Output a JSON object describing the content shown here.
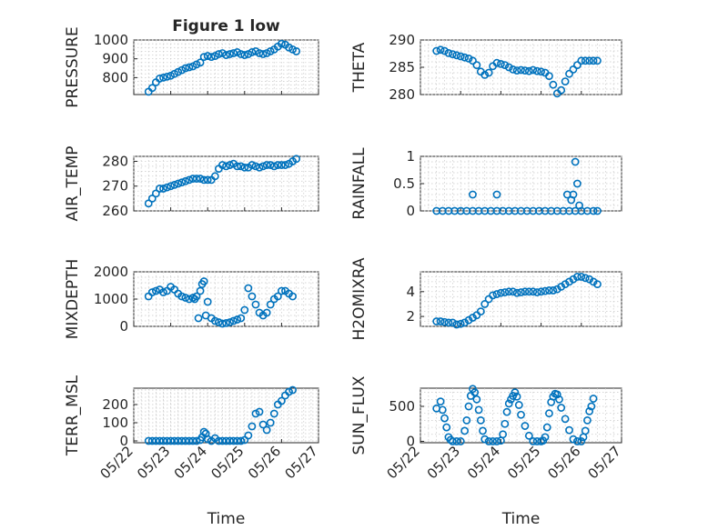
{
  "figure": {
    "title": "Figure 1 low",
    "marker_color": "#0072BD"
  },
  "chart_data": [
    {
      "type": "scatter",
      "title": "Figure 1 low",
      "ylabel": "PRESSURE",
      "xlabel": "",
      "xlim": [
        0,
        5
      ],
      "ylim": [
        710,
        1000
      ],
      "yticks": [
        800,
        900,
        1000
      ],
      "x": [
        0.4,
        0.5,
        0.6,
        0.7,
        0.8,
        0.9,
        1.0,
        1.1,
        1.2,
        1.3,
        1.4,
        1.5,
        1.6,
        1.7,
        1.8,
        1.9,
        2.0,
        2.1,
        2.2,
        2.3,
        2.4,
        2.5,
        2.6,
        2.7,
        2.8,
        2.9,
        3.0,
        3.1,
        3.2,
        3.3,
        3.4,
        3.5,
        3.6,
        3.7,
        3.8,
        3.9,
        4.0,
        4.1,
        4.2,
        4.3,
        4.4
      ],
      "y": [
        725,
        745,
        775,
        795,
        800,
        805,
        810,
        820,
        830,
        840,
        850,
        855,
        860,
        870,
        880,
        910,
        915,
        910,
        915,
        925,
        930,
        920,
        925,
        930,
        935,
        925,
        920,
        925,
        935,
        940,
        930,
        925,
        930,
        940,
        950,
        965,
        980,
        975,
        960,
        950,
        940
      ]
    },
    {
      "type": "scatter",
      "ylabel": "THETA",
      "xlabel": "",
      "xlim": [
        0,
        5
      ],
      "ylim": [
        280,
        290
      ],
      "yticks": [
        280,
        285,
        290
      ],
      "x": [
        0.4,
        0.5,
        0.6,
        0.7,
        0.8,
        0.9,
        1.0,
        1.1,
        1.2,
        1.3,
        1.4,
        1.5,
        1.6,
        1.7,
        1.8,
        1.9,
        2.0,
        2.1,
        2.2,
        2.3,
        2.4,
        2.5,
        2.6,
        2.7,
        2.8,
        2.9,
        3.0,
        3.1,
        3.2,
        3.3,
        3.4,
        3.5,
        3.6,
        3.7,
        3.8,
        3.9,
        4.0,
        4.1,
        4.2,
        4.3,
        4.4
      ],
      "y": [
        288,
        288.2,
        288,
        287.6,
        287.4,
        287.2,
        287,
        286.8,
        286.6,
        286.2,
        285.4,
        284.2,
        283.6,
        284,
        285.2,
        285.8,
        285.6,
        285.4,
        285,
        284.6,
        284.4,
        284.5,
        284.4,
        284.3,
        284.5,
        284.3,
        284.2,
        284,
        283.4,
        281.8,
        280.2,
        280.8,
        282.4,
        283.8,
        284.6,
        285.4,
        286.2,
        286.2,
        286.2,
        286.2,
        286.2
      ]
    },
    {
      "type": "scatter",
      "ylabel": "AIR_TEMP",
      "xlabel": "",
      "xlim": [
        0,
        5
      ],
      "ylim": [
        260,
        282
      ],
      "yticks": [
        260,
        270,
        280
      ],
      "x": [
        0.4,
        0.5,
        0.6,
        0.7,
        0.8,
        0.9,
        1.0,
        1.1,
        1.2,
        1.3,
        1.4,
        1.5,
        1.6,
        1.7,
        1.8,
        1.9,
        2.0,
        2.1,
        2.2,
        2.3,
        2.4,
        2.5,
        2.6,
        2.7,
        2.8,
        2.9,
        3.0,
        3.1,
        3.2,
        3.3,
        3.4,
        3.5,
        3.6,
        3.7,
        3.8,
        3.9,
        4.0,
        4.1,
        4.2,
        4.3,
        4.4
      ],
      "y": [
        263,
        265,
        267,
        269,
        269,
        269.5,
        270,
        270.5,
        271,
        271.5,
        272,
        272.5,
        273,
        273,
        273,
        272.5,
        272.5,
        272.5,
        274,
        277,
        278.5,
        278,
        278.5,
        279,
        278,
        278,
        277.5,
        277.5,
        278.5,
        278,
        277.5,
        278,
        278.5,
        278.5,
        278,
        278.5,
        278.5,
        278.5,
        279,
        280,
        281
      ]
    },
    {
      "type": "scatter",
      "ylabel": "RAINFALL",
      "xlabel": "",
      "xlim": [
        0,
        5
      ],
      "ylim": [
        0,
        1
      ],
      "yticks": [
        0,
        0.5,
        1
      ],
      "x": [
        0.4,
        0.55,
        0.7,
        0.85,
        1.0,
        1.15,
        1.3,
        1.45,
        1.6,
        1.75,
        1.9,
        2.05,
        2.2,
        2.35,
        2.5,
        2.65,
        2.8,
        2.95,
        3.1,
        3.25,
        3.4,
        3.55,
        3.7,
        3.85,
        4.0,
        4.15,
        4.3,
        4.4,
        1.3,
        1.9,
        3.65,
        3.75,
        3.8,
        3.85,
        3.9,
        3.95
      ],
      "y": [
        0,
        0,
        0,
        0,
        0,
        0,
        0,
        0,
        0,
        0,
        0,
        0,
        0,
        0,
        0,
        0,
        0,
        0,
        0,
        0,
        0,
        0,
        0,
        0,
        0,
        0,
        0,
        0,
        0.3,
        0.3,
        0.3,
        0.2,
        0.3,
        0.9,
        0.5,
        0.1
      ]
    },
    {
      "type": "scatter",
      "ylabel": "MIXDEPTH",
      "xlabel": "",
      "xlim": [
        0,
        5
      ],
      "ylim": [
        0,
        2000
      ],
      "yticks": [
        0,
        1000,
        2000
      ],
      "x": [
        0.4,
        0.5,
        0.6,
        0.7,
        0.8,
        0.9,
        1.0,
        1.1,
        1.2,
        1.3,
        1.4,
        1.5,
        1.6,
        1.65,
        1.7,
        1.75,
        1.8,
        1.85,
        1.9,
        1.95,
        2.0,
        2.1,
        2.2,
        2.3,
        2.4,
        2.5,
        2.6,
        2.7,
        2.8,
        2.9,
        3.0,
        3.1,
        3.2,
        3.3,
        3.4,
        3.5,
        3.6,
        3.7,
        3.8,
        3.9,
        4.0,
        4.1,
        4.2,
        4.3
      ],
      "y": [
        1100,
        1250,
        1300,
        1350,
        1250,
        1300,
        1450,
        1350,
        1200,
        1100,
        1050,
        1000,
        1050,
        1000,
        1100,
        300,
        1300,
        1550,
        1650,
        400,
        900,
        300,
        200,
        150,
        100,
        120,
        150,
        200,
        250,
        300,
        600,
        1400,
        1100,
        800,
        500,
        400,
        500,
        800,
        1000,
        1100,
        1300,
        1300,
        1200,
        1100
      ]
    },
    {
      "type": "scatter",
      "ylabel": "H2OMIXRA",
      "xlabel": "",
      "xlim": [
        0,
        5
      ],
      "ylim": [
        1.2,
        5.6
      ],
      "yticks": [
        2,
        4
      ],
      "x": [
        0.4,
        0.5,
        0.6,
        0.7,
        0.8,
        0.9,
        1.0,
        1.1,
        1.2,
        1.3,
        1.4,
        1.5,
        1.6,
        1.7,
        1.8,
        1.9,
        2.0,
        2.1,
        2.2,
        2.3,
        2.4,
        2.5,
        2.6,
        2.7,
        2.8,
        2.9,
        3.0,
        3.1,
        3.2,
        3.3,
        3.4,
        3.5,
        3.6,
        3.7,
        3.8,
        3.9,
        4.0,
        4.1,
        4.2,
        4.3,
        4.4
      ],
      "y": [
        1.6,
        1.6,
        1.55,
        1.5,
        1.5,
        1.35,
        1.4,
        1.5,
        1.7,
        1.9,
        2.1,
        2.4,
        3.0,
        3.4,
        3.7,
        3.8,
        3.9,
        3.95,
        4.0,
        4.0,
        3.9,
        3.95,
        4.0,
        4.0,
        4.0,
        3.95,
        4.0,
        4.05,
        4.1,
        4.1,
        4.2,
        4.4,
        4.6,
        4.8,
        5.0,
        5.2,
        5.2,
        5.1,
        5.0,
        4.8,
        4.6
      ]
    },
    {
      "type": "scatter",
      "ylabel": "TERR_MSL",
      "xlabel": "Time",
      "xlim": [
        0,
        5
      ],
      "ylim": [
        -10,
        290
      ],
      "yticks": [
        0,
        100,
        200
      ],
      "xticklabels": [
        "05/22",
        "05/23",
        "05/24",
        "05/25",
        "05/26",
        "05/27"
      ],
      "x": [
        0.4,
        0.5,
        0.6,
        0.7,
        0.8,
        0.9,
        1.0,
        1.1,
        1.2,
        1.3,
        1.4,
        1.5,
        1.6,
        1.7,
        1.8,
        1.85,
        1.9,
        1.95,
        2.0,
        2.1,
        2.2,
        2.3,
        2.4,
        2.5,
        2.6,
        2.7,
        2.8,
        2.9,
        3.0,
        3.1,
        3.2,
        3.3,
        3.4,
        3.5,
        3.6,
        3.7,
        3.8,
        3.9,
        4.0,
        4.1,
        4.2,
        4.3
      ],
      "y": [
        0,
        0,
        0,
        0,
        0,
        0,
        0,
        0,
        0,
        0,
        0,
        0,
        0,
        0,
        5,
        20,
        50,
        40,
        10,
        0,
        15,
        0,
        0,
        0,
        0,
        0,
        0,
        0,
        5,
        30,
        80,
        150,
        160,
        90,
        60,
        100,
        150,
        200,
        220,
        250,
        270,
        280
      ]
    },
    {
      "type": "scatter",
      "ylabel": "SUN_FLUX",
      "xlabel": "Time",
      "xlim": [
        0,
        5
      ],
      "ylim": [
        -20,
        760
      ],
      "yticks": [
        0,
        500
      ],
      "xticklabels": [
        "05/22",
        "05/23",
        "05/24",
        "05/25",
        "05/26",
        "05/27"
      ],
      "x": [
        0.4,
        0.5,
        0.55,
        0.6,
        0.65,
        0.7,
        0.75,
        0.8,
        0.9,
        1.0,
        1.1,
        1.15,
        1.2,
        1.25,
        1.3,
        1.35,
        1.4,
        1.45,
        1.5,
        1.55,
        1.6,
        1.7,
        1.8,
        1.9,
        2.0,
        2.05,
        2.1,
        2.15,
        2.2,
        2.25,
        2.3,
        2.35,
        2.4,
        2.45,
        2.5,
        2.6,
        2.7,
        2.8,
        2.9,
        3.0,
        3.05,
        3.1,
        3.15,
        3.2,
        3.25,
        3.3,
        3.35,
        3.4,
        3.45,
        3.5,
        3.6,
        3.7,
        3.8,
        3.9,
        4.0,
        4.05,
        4.1,
        4.15,
        4.2,
        4.25,
        4.3
      ],
      "y": [
        470,
        570,
        450,
        330,
        200,
        60,
        20,
        0,
        0,
        0,
        150,
        300,
        500,
        650,
        750,
        700,
        600,
        450,
        300,
        150,
        30,
        0,
        0,
        0,
        10,
        100,
        250,
        420,
        540,
        600,
        650,
        700,
        640,
        520,
        380,
        220,
        80,
        0,
        0,
        0,
        10,
        60,
        200,
        400,
        560,
        640,
        680,
        670,
        600,
        480,
        320,
        160,
        30,
        0,
        0,
        60,
        150,
        300,
        430,
        500,
        610
      ]
    }
  ]
}
